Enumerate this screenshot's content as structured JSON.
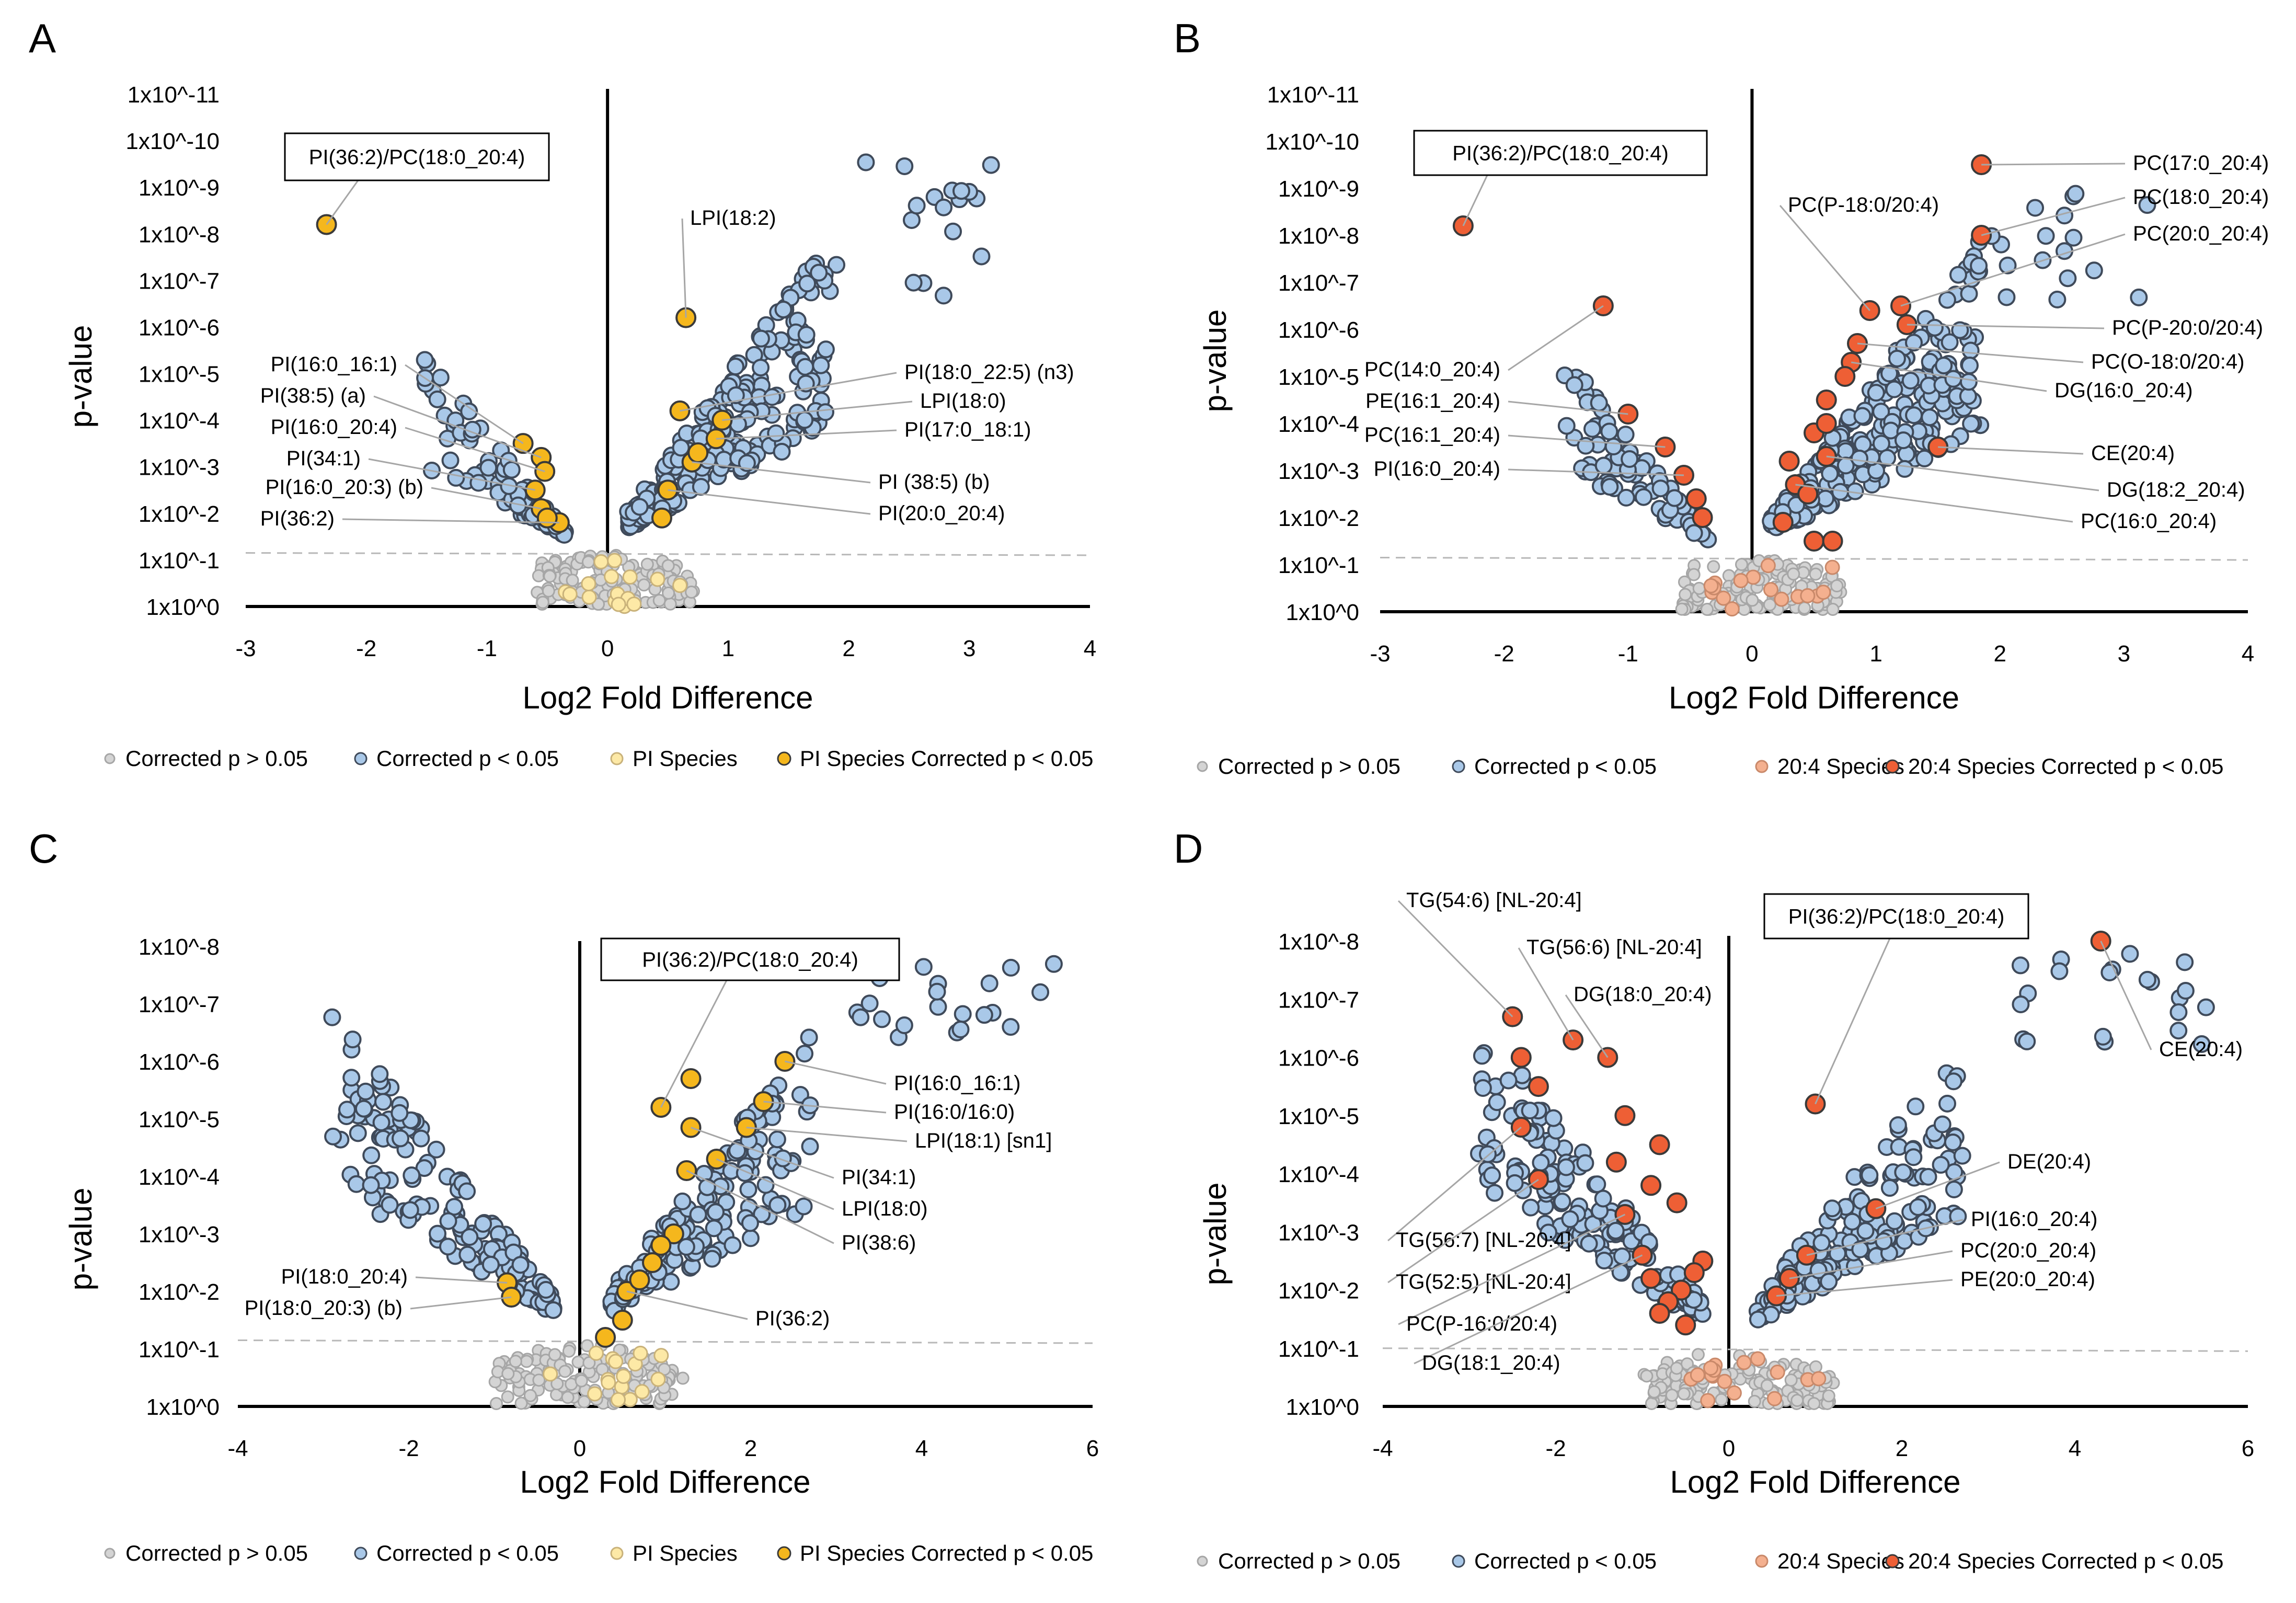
{
  "colors": {
    "grey_fill": "#d4d4d4",
    "grey_stroke": "#a6a6a6",
    "blue_fill": "#a9c8e8",
    "blue_stroke": "#3f4a5a",
    "pi_light_fill": "#fde9a6",
    "pi_light_stroke": "#c9b27a",
    "pi_sig_fill": "#f5b71d",
    "pi_sig_stroke": "#3a3a3a",
    "aa_light_fill": "#f4b08f",
    "aa_light_stroke": "#c9896a",
    "aa_sig_fill": "#ee5f35",
    "aa_sig_stroke": "#3a3a3a"
  },
  "chart_data": [
    {
      "panel": "A",
      "type": "scatter",
      "xlabel": "Log2 Fold Difference",
      "ylabel": "p-value",
      "xlim": [
        -3,
        4
      ],
      "ylim": [
        0,
        11
      ],
      "xticks": [
        "-3",
        "-2",
        "-1",
        "0",
        "1",
        "2",
        "3",
        "4"
      ],
      "yticks": [
        "1x10^0",
        "1x10^-1",
        "1x10^-2",
        "1x10^-3",
        "1x10^-4",
        "1x10^-5",
        "1x10^-6",
        "1x10^-7",
        "1x10^-8",
        "1x10^-9",
        "1x10^-10",
        "1x10^-11"
      ],
      "threshold": 1.15,
      "boxed_label": "PI(36:2)/PC(18:0_20:4)",
      "legend": [
        "Corrected p > 0.05",
        "Corrected p < 0.05",
        "PI Species",
        "PI Species Corrected p < 0.05"
      ],
      "highlight_style": "pi",
      "highlighted": [
        {
          "label": "PI(36:2)/PC(18:0_20:4)",
          "x": -2.33,
          "y": 8.2,
          "boxed": true
        },
        {
          "label": "LPI(18:2)",
          "x": 0.65,
          "y": 6.2
        },
        {
          "label": "PI(16:0_16:1)",
          "x": -0.7,
          "y": 3.5
        },
        {
          "label": "PI(38:5) (a)",
          "x": -0.55,
          "y": 3.2
        },
        {
          "label": "PI(16:0_20:4)",
          "x": -0.52,
          "y": 2.9
        },
        {
          "label": "PI(34:1)",
          "x": -0.6,
          "y": 2.5
        },
        {
          "label": "PI(16:0_20:3) (b)",
          "x": -0.55,
          "y": 2.1
        },
        {
          "label": "PI(36:2)",
          "x": -0.4,
          "y": 1.8
        },
        {
          "label": "PI(18:0_22:5) (n3)",
          "x": 0.6,
          "y": 4.2
        },
        {
          "label": "LPI(18:0)",
          "x": 0.95,
          "y": 4.0
        },
        {
          "label": "PI(17:0_18:1)",
          "x": 0.9,
          "y": 3.6
        },
        {
          "label": "PI (38:5) (b)",
          "x": 0.7,
          "y": 3.1
        },
        {
          "label": "PI(20:0_20:4)",
          "x": 0.5,
          "y": 2.5
        },
        {
          "x": -0.5,
          "y": 1.9
        },
        {
          "x": 0.45,
          "y": 1.9
        },
        {
          "x": 0.75,
          "y": 3.3
        }
      ]
    },
    {
      "panel": "B",
      "type": "scatter",
      "xlabel": "Log2 Fold Difference",
      "ylabel": "p-value",
      "xlim": [
        -3,
        4
      ],
      "ylim": [
        0,
        11
      ],
      "xticks": [
        "-3",
        "-2",
        "-1",
        "0",
        "1",
        "2",
        "3",
        "4"
      ],
      "yticks": [
        "1x10^0",
        "1x10^-1",
        "1x10^-2",
        "1x10^-3",
        "1x10^-4",
        "1x10^-5",
        "1x10^-6",
        "1x10^-7",
        "1x10^-8",
        "1x10^-9",
        "1x10^-10",
        "1x10^-11"
      ],
      "threshold": 1.15,
      "boxed_label": "PI(36:2)/PC(18:0_20:4)",
      "legend": [
        "Corrected p > 0.05",
        "Corrected p < 0.05",
        "20:4 Species",
        "20:4 Species Corrected p < 0.05"
      ],
      "highlight_style": "aa",
      "highlighted": [
        {
          "label": "PI(36:2)/PC(18:0_20:4)",
          "x": -2.33,
          "y": 8.2,
          "boxed": true
        },
        {
          "label": "PC(17:0_20:4)",
          "x": 1.85,
          "y": 9.5
        },
        {
          "label": "PC(18:0_20:4)",
          "x": 1.85,
          "y": 8.0
        },
        {
          "label": "PC(20:0_20:4)",
          "x": 1.2,
          "y": 6.5
        },
        {
          "label": "PC(P-18:0/20:4)",
          "x": 0.95,
          "y": 6.4
        },
        {
          "label": "PC(P-20:0/20:4)",
          "x": 1.25,
          "y": 6.1
        },
        {
          "label": "PC(O-18:0/20:4)",
          "x": 0.85,
          "y": 5.7
        },
        {
          "label": "DG(16:0_20:4)",
          "x": 0.8,
          "y": 5.3
        },
        {
          "label": "PC(14:0_20:4)",
          "x": -1.2,
          "y": 6.5
        },
        {
          "label": "PE(16:1_20:4)",
          "x": -1.0,
          "y": 4.2
        },
        {
          "label": "PC(16:1_20:4)",
          "x": -0.7,
          "y": 3.5
        },
        {
          "label": "PI(16:0_20:4)",
          "x": -0.55,
          "y": 2.9
        },
        {
          "label": "CE(20:4)",
          "x": 1.5,
          "y": 3.5
        },
        {
          "label": "DG(18:2_20:4)",
          "x": 0.6,
          "y": 3.3
        },
        {
          "label": "PC(16:0_20:4)",
          "x": 0.35,
          "y": 2.7
        },
        {
          "x": -0.45,
          "y": 2.4
        },
        {
          "x": -0.4,
          "y": 2.0
        },
        {
          "x": 0.6,
          "y": 4.5
        },
        {
          "x": 0.5,
          "y": 3.8
        },
        {
          "x": 0.3,
          "y": 3.2
        },
        {
          "x": 0.45,
          "y": 2.5
        },
        {
          "x": 0.25,
          "y": 1.9
        },
        {
          "x": 0.5,
          "y": 1.5
        },
        {
          "x": 0.6,
          "y": 4.0
        },
        {
          "x": 0.75,
          "y": 5.0
        },
        {
          "x": 0.65,
          "y": 1.5
        }
      ]
    },
    {
      "panel": "C",
      "type": "scatter",
      "xlabel": "Log2 Fold Difference",
      "ylabel": "p-value",
      "xlim": [
        -4,
        6
      ],
      "ylim": [
        0,
        8
      ],
      "xticks": [
        "-4",
        "-2",
        "0",
        "2",
        "4",
        "6"
      ],
      "yticks": [
        "1x10^0",
        "1x10^-1",
        "1x10^-2",
        "1x10^-3",
        "1x10^-4",
        "1x10^-5",
        "1x10^-6",
        "1x10^-7",
        "1x10^-8"
      ],
      "threshold": 1.15,
      "boxed_label": "PI(36:2)/PC(18:0_20:4)",
      "legend": [
        "Corrected p > 0.05",
        "Corrected p < 0.05",
        "PI Species",
        "PI Species Corrected p < 0.05"
      ],
      "highlight_style": "pi",
      "highlighted": [
        {
          "label": "PI(36:2)/PC(18:0_20:4)",
          "x": 0.95,
          "y": 5.2,
          "boxed": true
        },
        {
          "label": "PI(16:0_16:1)",
          "x": 2.4,
          "y": 6.0
        },
        {
          "label": "PI(16:0/16:0)",
          "x": 2.15,
          "y": 5.3
        },
        {
          "label": "LPI(18:1) [sn1]",
          "x": 1.95,
          "y": 4.85
        },
        {
          "label": "PI(34:1)",
          "x": 1.3,
          "y": 4.85
        },
        {
          "label": "LPI(18:0)",
          "x": 1.6,
          "y": 4.3
        },
        {
          "label": "PI(38:6)",
          "x": 1.25,
          "y": 4.1
        },
        {
          "label": "PI(18:0_20:4)",
          "x": -0.85,
          "y": 2.15
        },
        {
          "label": "PI(18:0_20:3) (b)",
          "x": -0.8,
          "y": 1.9
        },
        {
          "label": "PI(36:2)",
          "x": 0.55,
          "y": 2.0
        },
        {
          "x": 1.3,
          "y": 5.7
        },
        {
          "x": 1.1,
          "y": 3.0
        },
        {
          "x": 0.95,
          "y": 2.8
        },
        {
          "x": 0.85,
          "y": 2.5
        },
        {
          "x": 0.7,
          "y": 2.2
        },
        {
          "x": 0.5,
          "y": 1.5
        },
        {
          "x": 0.3,
          "y": 1.2
        }
      ]
    },
    {
      "panel": "D",
      "type": "scatter",
      "xlabel": "Log2 Fold Difference",
      "ylabel": "p-value",
      "xlim": [
        -4,
        6
      ],
      "ylim": [
        0,
        8
      ],
      "xticks": [
        "-4",
        "-2",
        "0",
        "2",
        "4",
        "6"
      ],
      "yticks": [
        "1x10^0",
        "1x10^-1",
        "1x10^-2",
        "1x10^-3",
        "1x10^-4",
        "1x10^-5",
        "1x10^-6",
        "1x10^-7",
        "1x10^-8"
      ],
      "threshold": 1.0,
      "boxed_label": "PI(36:2)/PC(18:0_20:4)",
      "legend": [
        "Corrected p > 0.05",
        "Corrected p < 0.05",
        "20:4 Species",
        "20:4 Species Corrected p < 0.05"
      ],
      "highlight_style": "aa",
      "highlighted": [
        {
          "label": "PI(36:2)/PC(18:0_20:4)",
          "x": 1.0,
          "y": 5.2,
          "boxed": true
        },
        {
          "label": "TG(54:6) [NL-20:4]",
          "x": -2.5,
          "y": 6.7
        },
        {
          "label": "TG(56:6) [NL-20:4]",
          "x": -1.8,
          "y": 6.3
        },
        {
          "label": "DG(18:0_20:4)",
          "x": -1.4,
          "y": 6.0
        },
        {
          "label": "CE(20:4)",
          "x": 4.3,
          "y": 8.0
        },
        {
          "label": "DE(20:4)",
          "x": 1.7,
          "y": 3.4
        },
        {
          "label": "PI(16:0_20:4)",
          "x": 0.9,
          "y": 2.6
        },
        {
          "label": "PC(20:0_20:4)",
          "x": 0.7,
          "y": 2.2
        },
        {
          "label": "PE(20:0_20:4)",
          "x": 0.55,
          "y": 1.9
        },
        {
          "label": "TG(56:7) [NL-20:4]",
          "x": -2.4,
          "y": 4.8
        },
        {
          "label": "TG(52:5) [NL-20:4]",
          "x": -2.2,
          "y": 3.9
        },
        {
          "label": "PC(P-16:0/20:4)",
          "x": -1.2,
          "y": 3.3
        },
        {
          "label": "DG(18:1_20:4)",
          "x": -1.0,
          "y": 2.6
        },
        {
          "x": -2.2,
          "y": 5.5
        },
        {
          "x": -2.4,
          "y": 6.0
        },
        {
          "x": -1.2,
          "y": 5.0
        },
        {
          "x": -0.8,
          "y": 4.5
        },
        {
          "x": -1.3,
          "y": 4.2
        },
        {
          "x": -0.9,
          "y": 3.8
        },
        {
          "x": -0.6,
          "y": 3.5
        },
        {
          "x": -0.3,
          "y": 2.5
        },
        {
          "x": -0.4,
          "y": 2.3
        },
        {
          "x": -0.55,
          "y": 2.0
        },
        {
          "x": -0.7,
          "y": 1.8
        },
        {
          "x": -0.8,
          "y": 1.6
        },
        {
          "x": -0.5,
          "y": 1.4
        },
        {
          "x": -0.9,
          "y": 2.2
        }
      ]
    }
  ]
}
